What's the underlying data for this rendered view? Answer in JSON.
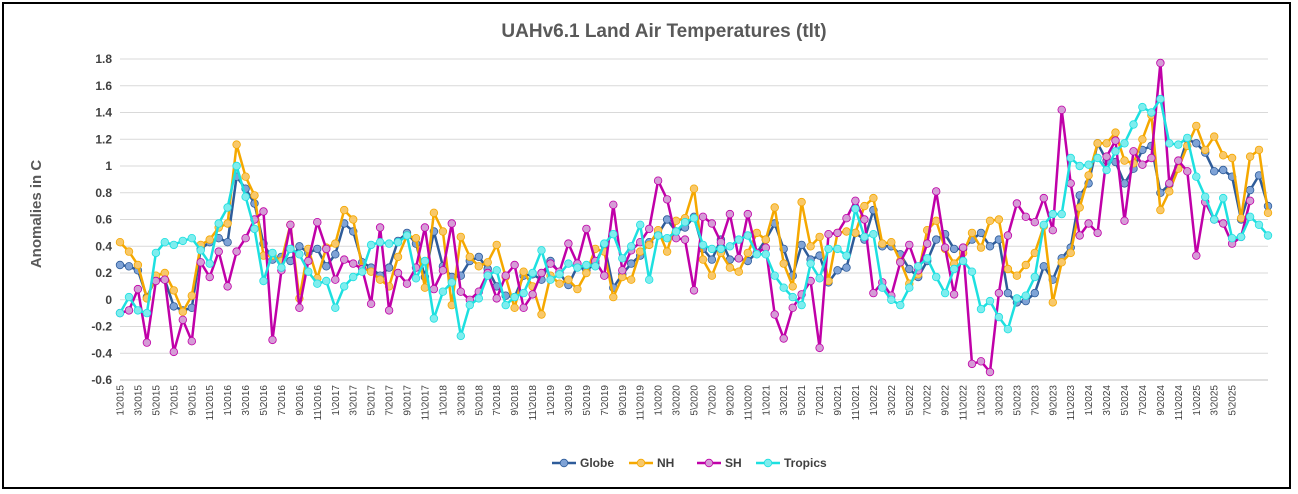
{
  "chart_data": {
    "type": "line",
    "title": "UAHv6.1 Land Air Temperatures (tlt)",
    "ylabel": "Anomalies in C",
    "xlabel": "",
    "ylim": [
      -0.6,
      1.8
    ],
    "yticks": [
      "-0.6",
      "-0.4",
      "-0.2",
      "0",
      "0.2",
      "0.4",
      "0.6",
      "0.8",
      "1",
      "1.2",
      "1.4",
      "1.6",
      "1.8"
    ],
    "grid": true,
    "legend_position": "bottom",
    "x_tick_labels": [
      "1\\2015",
      "3\\2015",
      "5\\2015",
      "7\\2015",
      "9\\2015",
      "11\\2015",
      "1\\2016",
      "3\\2016",
      "5\\2016",
      "7\\2016",
      "9\\2016",
      "11\\2016",
      "1\\2017",
      "3\\2017",
      "5\\2017",
      "7\\2017",
      "9\\2017",
      "11\\2017",
      "1\\2018",
      "3\\2018",
      "5\\2018",
      "7\\2018",
      "9\\2018",
      "11\\2018",
      "1\\2019",
      "3\\2019",
      "5\\2019",
      "7\\2019",
      "9\\2019",
      "11\\2019",
      "1\\2020",
      "3\\2020",
      "5\\2020",
      "7\\2020",
      "9\\2020",
      "11\\2020",
      "1\\2021",
      "3\\2021",
      "5\\2021",
      "7\\2021",
      "9\\2021",
      "11\\2021",
      "1\\2022",
      "3\\2022",
      "5\\2022",
      "7\\2022",
      "9\\2022",
      "11\\2022",
      "1\\2023",
      "3\\2023",
      "5\\2023",
      "7\\2023",
      "9\\2023",
      "11\\2023",
      "1\\2024",
      "3\\2024",
      "5\\2024",
      "7\\2024",
      "9\\2024",
      "11\\2024",
      "1\\2025",
      "3\\2025",
      "5\\2025"
    ],
    "series": [
      {
        "name": "Globe",
        "color": "#2E5C9A",
        "values": [
          0.26,
          0.25,
          0.22,
          0.02,
          0.16,
          0.15,
          -0.05,
          -0.08,
          -0.06,
          0.38,
          0.43,
          0.46,
          0.43,
          0.92,
          0.83,
          0.72,
          0.42,
          0.3,
          0.32,
          0.29,
          0.4,
          0.35,
          0.38,
          0.25,
          0.34,
          0.57,
          0.51,
          0.28,
          0.24,
          0.18,
          0.24,
          0.44,
          0.5,
          0.42,
          0.17,
          0.51,
          0.25,
          0.17,
          0.18,
          0.29,
          0.32,
          0.23,
          0.1,
          0.03,
          0.02,
          0.18,
          0.19,
          0.15,
          0.29,
          0.2,
          0.11,
          0.25,
          0.22,
          0.27,
          0.41,
          0.09,
          0.19,
          0.27,
          0.33,
          0.43,
          0.49,
          0.6,
          0.51,
          0.54,
          0.62,
          0.38,
          0.3,
          0.45,
          0.3,
          0.31,
          0.29,
          0.35,
          0.45,
          0.57,
          0.38,
          0.18,
          0.41,
          0.3,
          0.33,
          0.13,
          0.22,
          0.24,
          0.5,
          0.45,
          0.67,
          0.4,
          0.4,
          0.34,
          0.23,
          0.17,
          0.29,
          0.45,
          0.49,
          0.38,
          0.38,
          0.45,
          0.5,
          0.4,
          0.45,
          0.05,
          -0.02,
          -0.01,
          0.05,
          0.25,
          0.15,
          0.31,
          0.39,
          0.78,
          0.87,
          1.17,
          1.04,
          1.03,
          0.87,
          0.98,
          1.12,
          1.15,
          0.8,
          0.86,
          0.99,
          1.2,
          1.17,
          1.1,
          0.96,
          0.97,
          0.92,
          0.6,
          0.82,
          0.93,
          0.7
        ]
      },
      {
        "name": "NH",
        "color": "#F5A800",
        "values": [
          0.43,
          0.36,
          0.26,
          0.01,
          0.18,
          0.2,
          0.07,
          -0.09,
          0.03,
          0.41,
          0.45,
          0.54,
          0.57,
          1.16,
          0.92,
          0.78,
          0.33,
          0.33,
          0.29,
          0.56,
          0.01,
          0.38,
          0.16,
          0.39,
          0.42,
          0.67,
          0.6,
          0.24,
          0.21,
          0.15,
          0.1,
          0.32,
          0.48,
          0.46,
          0.09,
          0.65,
          0.51,
          -0.04,
          0.47,
          0.32,
          0.25,
          0.28,
          0.41,
          0.17,
          -0.06,
          0.21,
          0.1,
          -0.11,
          0.18,
          0.12,
          0.15,
          0.08,
          0.2,
          0.38,
          0.36,
          0.02,
          0.17,
          0.15,
          0.36,
          0.41,
          0.52,
          0.36,
          0.59,
          0.61,
          0.83,
          0.3,
          0.18,
          0.35,
          0.24,
          0.21,
          0.35,
          0.5,
          0.45,
          0.69,
          0.27,
          0.1,
          0.73,
          0.4,
          0.47,
          0.14,
          0.5,
          0.51,
          0.5,
          0.7,
          0.76,
          0.42,
          0.43,
          0.29,
          0.12,
          0.19,
          0.52,
          0.59,
          0.38,
          0.27,
          0.35,
          0.5,
          0.39,
          0.59,
          0.6,
          0.23,
          0.18,
          0.26,
          0.35,
          0.55,
          -0.02,
          0.28,
          0.35,
          0.69,
          0.93,
          1.17,
          1.17,
          1.25,
          1.04,
          1.02,
          1.2,
          1.38,
          0.67,
          0.81,
          0.98,
          1.15,
          1.3,
          1.12,
          1.22,
          1.08,
          1.06,
          0.61,
          1.07,
          1.12,
          0.65
        ]
      },
      {
        "name": "SH",
        "color": "#C000A8",
        "values": [
          -0.1,
          -0.08,
          0.08,
          -0.32,
          0.14,
          0.15,
          -0.39,
          -0.15,
          -0.31,
          0.28,
          0.17,
          0.36,
          0.1,
          0.36,
          0.46,
          0.6,
          0.66,
          -0.3,
          0.22,
          0.56,
          -0.06,
          0.29,
          0.58,
          0.38,
          0.15,
          0.3,
          0.27,
          0.23,
          -0.03,
          0.54,
          -0.08,
          0.2,
          0.12,
          0.24,
          0.54,
          0.08,
          0.22,
          0.57,
          0.06,
          0.0,
          0.06,
          0.2,
          0.01,
          0.18,
          0.26,
          -0.06,
          0.04,
          0.2,
          0.27,
          0.21,
          0.42,
          0.27,
          0.53,
          0.29,
          0.18,
          0.71,
          0.22,
          0.37,
          0.43,
          0.53,
          0.89,
          0.75,
          0.46,
          0.45,
          0.07,
          0.62,
          0.57,
          0.43,
          0.64,
          0.31,
          0.64,
          0.35,
          0.39,
          -0.11,
          -0.29,
          -0.06,
          0.04,
          0.14,
          -0.36,
          0.49,
          0.5,
          0.61,
          0.74,
          0.6,
          0.05,
          0.13,
          0.03,
          0.28,
          0.41,
          0.22,
          0.42,
          0.81,
          0.39,
          0.04,
          0.39,
          -0.48,
          -0.46,
          -0.54,
          0.05,
          0.48,
          0.72,
          0.62,
          0.58,
          0.76,
          0.52,
          1.42,
          0.87,
          0.48,
          0.57,
          0.5,
          1.07,
          1.19,
          0.59,
          1.11,
          1.01,
          1.06,
          1.77,
          0.87,
          1.04,
          0.96,
          0.33,
          0.73,
          0.6,
          0.57,
          0.42,
          0.47,
          0.74
        ]
      },
      {
        "name": "Tropics",
        "color": "#1DE0E0",
        "values": [
          -0.1,
          0.02,
          -0.08,
          -0.1,
          0.35,
          0.43,
          0.41,
          0.44,
          0.46,
          0.37,
          0.27,
          0.57,
          0.69,
          1.0,
          0.77,
          0.53,
          0.14,
          0.35,
          0.24,
          0.38,
          0.34,
          0.21,
          0.12,
          0.14,
          -0.06,
          0.1,
          0.17,
          0.21,
          0.41,
          0.43,
          0.42,
          0.43,
          0.48,
          0.16,
          0.29,
          -0.14,
          0.06,
          0.13,
          -0.27,
          -0.04,
          0.01,
          0.18,
          0.22,
          -0.04,
          0.02,
          0.05,
          0.2,
          0.37,
          0.15,
          0.19,
          0.27,
          0.24,
          0.26,
          0.25,
          0.42,
          0.49,
          0.31,
          0.4,
          0.56,
          0.15,
          0.48,
          0.46,
          0.51,
          0.58,
          0.61,
          0.41,
          0.38,
          0.38,
          0.4,
          0.45,
          0.48,
          0.34,
          0.34,
          0.18,
          0.09,
          0.02,
          -0.04,
          0.27,
          0.16,
          0.38,
          0.38,
          0.33,
          0.68,
          0.47,
          0.49,
          0.09,
          0.0,
          -0.04,
          0.09,
          0.25,
          0.31,
          0.17,
          0.05,
          0.23,
          0.29,
          0.21,
          -0.07,
          -0.01,
          -0.13,
          -0.22,
          0.01,
          0.03,
          0.17,
          0.56,
          0.64,
          0.64,
          1.06,
          1.0,
          1.01,
          1.06,
          0.97,
          1.11,
          1.17,
          1.31,
          1.44,
          1.4,
          1.5,
          1.17,
          1.16,
          1.21,
          0.92,
          0.77,
          0.6,
          0.76,
          0.46,
          0.47,
          0.62,
          0.56,
          0.48
        ]
      }
    ]
  }
}
